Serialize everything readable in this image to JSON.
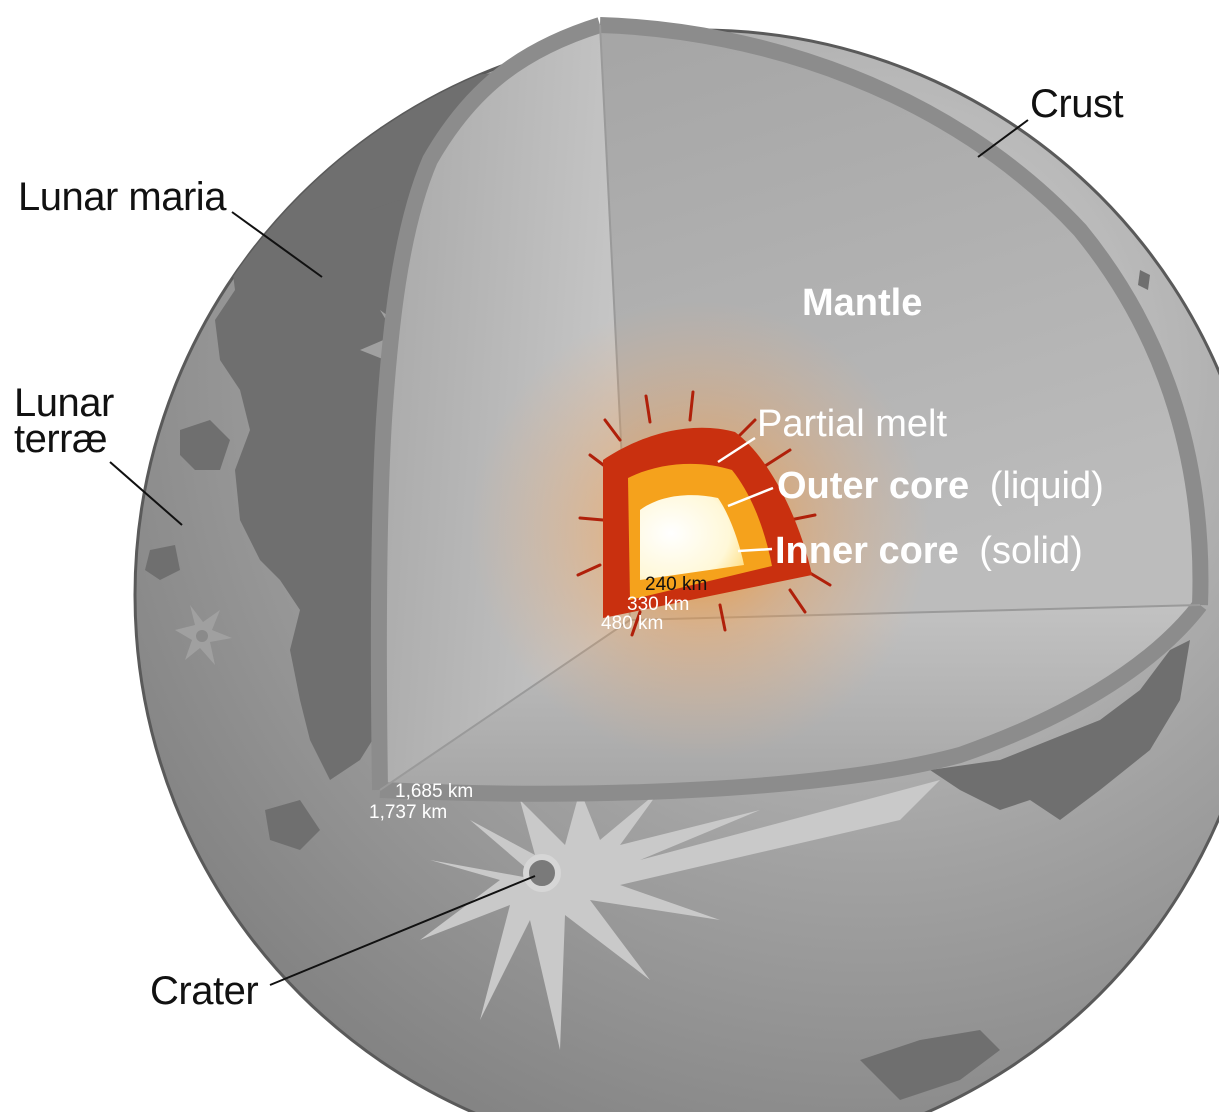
{
  "labels": {
    "crust": "Crust",
    "lunar_maria": "Lunar maria",
    "lunar_terrae_line1": "Lunar",
    "lunar_terrae_line2": "terræ",
    "mantle": "Mantle",
    "partial_melt": "Partial melt",
    "outer_core_name": "Outer core",
    "outer_core_state": "(liquid)",
    "inner_core_name": "Inner core",
    "inner_core_state": "(solid)",
    "crater": "Crater"
  },
  "radii": {
    "inner_core": "240 km",
    "outer_core": "330 km",
    "partial_melt": "480 km",
    "mantle": "1,685 km",
    "surface": "1,737 km"
  },
  "colors": {
    "surface": "#9a9a9a",
    "maria": "#6e6e6e",
    "mantle": "#b4b4b4",
    "crust": "#8c8c8c",
    "partial_melt": "#c9300f",
    "outer_core": "#f5a21c",
    "inner_core": "#fffbe6",
    "label_dark": "#111111",
    "label_light": "#ffffff"
  }
}
